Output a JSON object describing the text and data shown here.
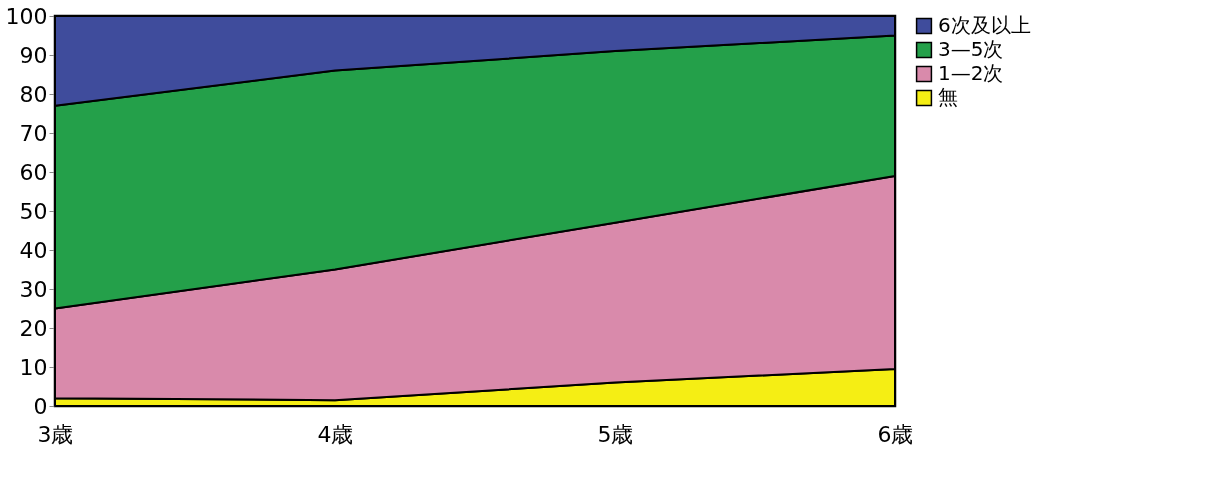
{
  "chart_data": {
    "type": "area",
    "stacked": true,
    "categories": [
      "3歳",
      "4歳",
      "5歳",
      "6歳"
    ],
    "series": [
      {
        "name": "無",
        "color": "#f5ee14",
        "values": [
          2,
          1.5,
          6,
          9.5
        ]
      },
      {
        "name": "1—2次",
        "color": "#d98aab",
        "values": [
          23,
          33.5,
          41,
          49.5
        ]
      },
      {
        "name": "3—5次",
        "color": "#24a04a",
        "values": [
          52,
          51,
          44,
          36
        ]
      },
      {
        "name": "6次及以上",
        "color": "#3f4c9c",
        "values": [
          23,
          14,
          9,
          5
        ]
      }
    ],
    "ylim": [
      0,
      100
    ],
    "yticks": [
      0,
      10,
      20,
      30,
      40,
      50,
      60,
      70,
      80,
      90,
      100
    ],
    "grid": false,
    "legend": "top right"
  }
}
